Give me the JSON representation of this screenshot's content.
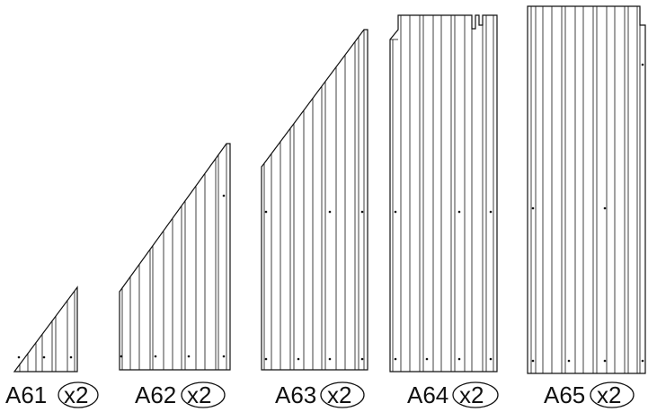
{
  "diagram": {
    "panels": [
      {
        "id": "A61",
        "label": "A61",
        "qty": "x2"
      },
      {
        "id": "A62",
        "label": "A62",
        "qty": "x2"
      },
      {
        "id": "A63",
        "label": "A63",
        "qty": "x2"
      },
      {
        "id": "A64",
        "label": "A64",
        "qty": "x2"
      },
      {
        "id": "A65",
        "label": "A65",
        "qty": "x2"
      }
    ]
  }
}
